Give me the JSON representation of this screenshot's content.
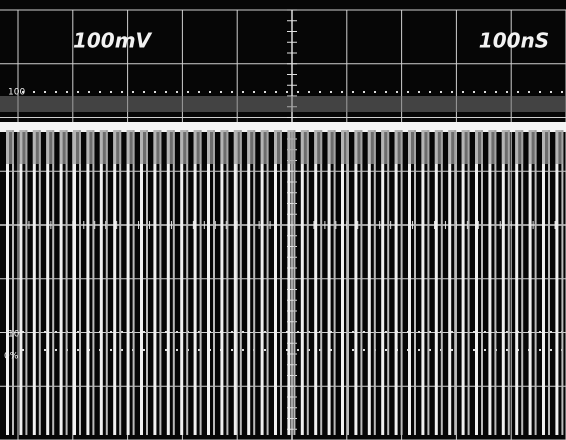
{
  "screen": {
    "volts_per_div": "100mV",
    "time_per_div": "100nS",
    "marker_top": "100",
    "marker_ten": "10",
    "marker_zero": "0%"
  }
}
